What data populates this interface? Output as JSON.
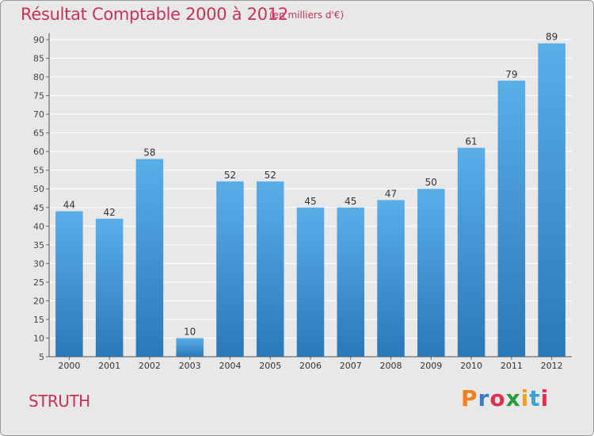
{
  "header": {
    "title": "Résultat Comptable 2000 à 2012",
    "subtitle": "(en milliers d'€)"
  },
  "footer": {
    "commune": "STRUTH",
    "brand": "Proxiti"
  },
  "colors": {
    "title": "#c8325a",
    "bar_top": "#5aaee8",
    "bar_bottom": "#2a78b8",
    "background": "#e8e8e8",
    "brand_letters": [
      "#f08020",
      "#3a78c8",
      "#e03050",
      "#2a9a3a",
      "#f0a020",
      "#3aa0d8",
      "#e03050"
    ]
  },
  "chart_data": {
    "type": "bar",
    "categories": [
      "2000",
      "2001",
      "2002",
      "2003",
      "2004",
      "2005",
      "2006",
      "2007",
      "2008",
      "2009",
      "2010",
      "2011",
      "2012"
    ],
    "values": [
      44,
      42,
      58,
      10,
      52,
      52,
      45,
      45,
      47,
      50,
      61,
      79,
      89
    ],
    "ylim": [
      5,
      90
    ],
    "yticks": [
      5,
      10,
      15,
      20,
      25,
      30,
      35,
      40,
      45,
      50,
      55,
      60,
      65,
      70,
      75,
      80,
      85,
      90
    ],
    "grid": true
  }
}
